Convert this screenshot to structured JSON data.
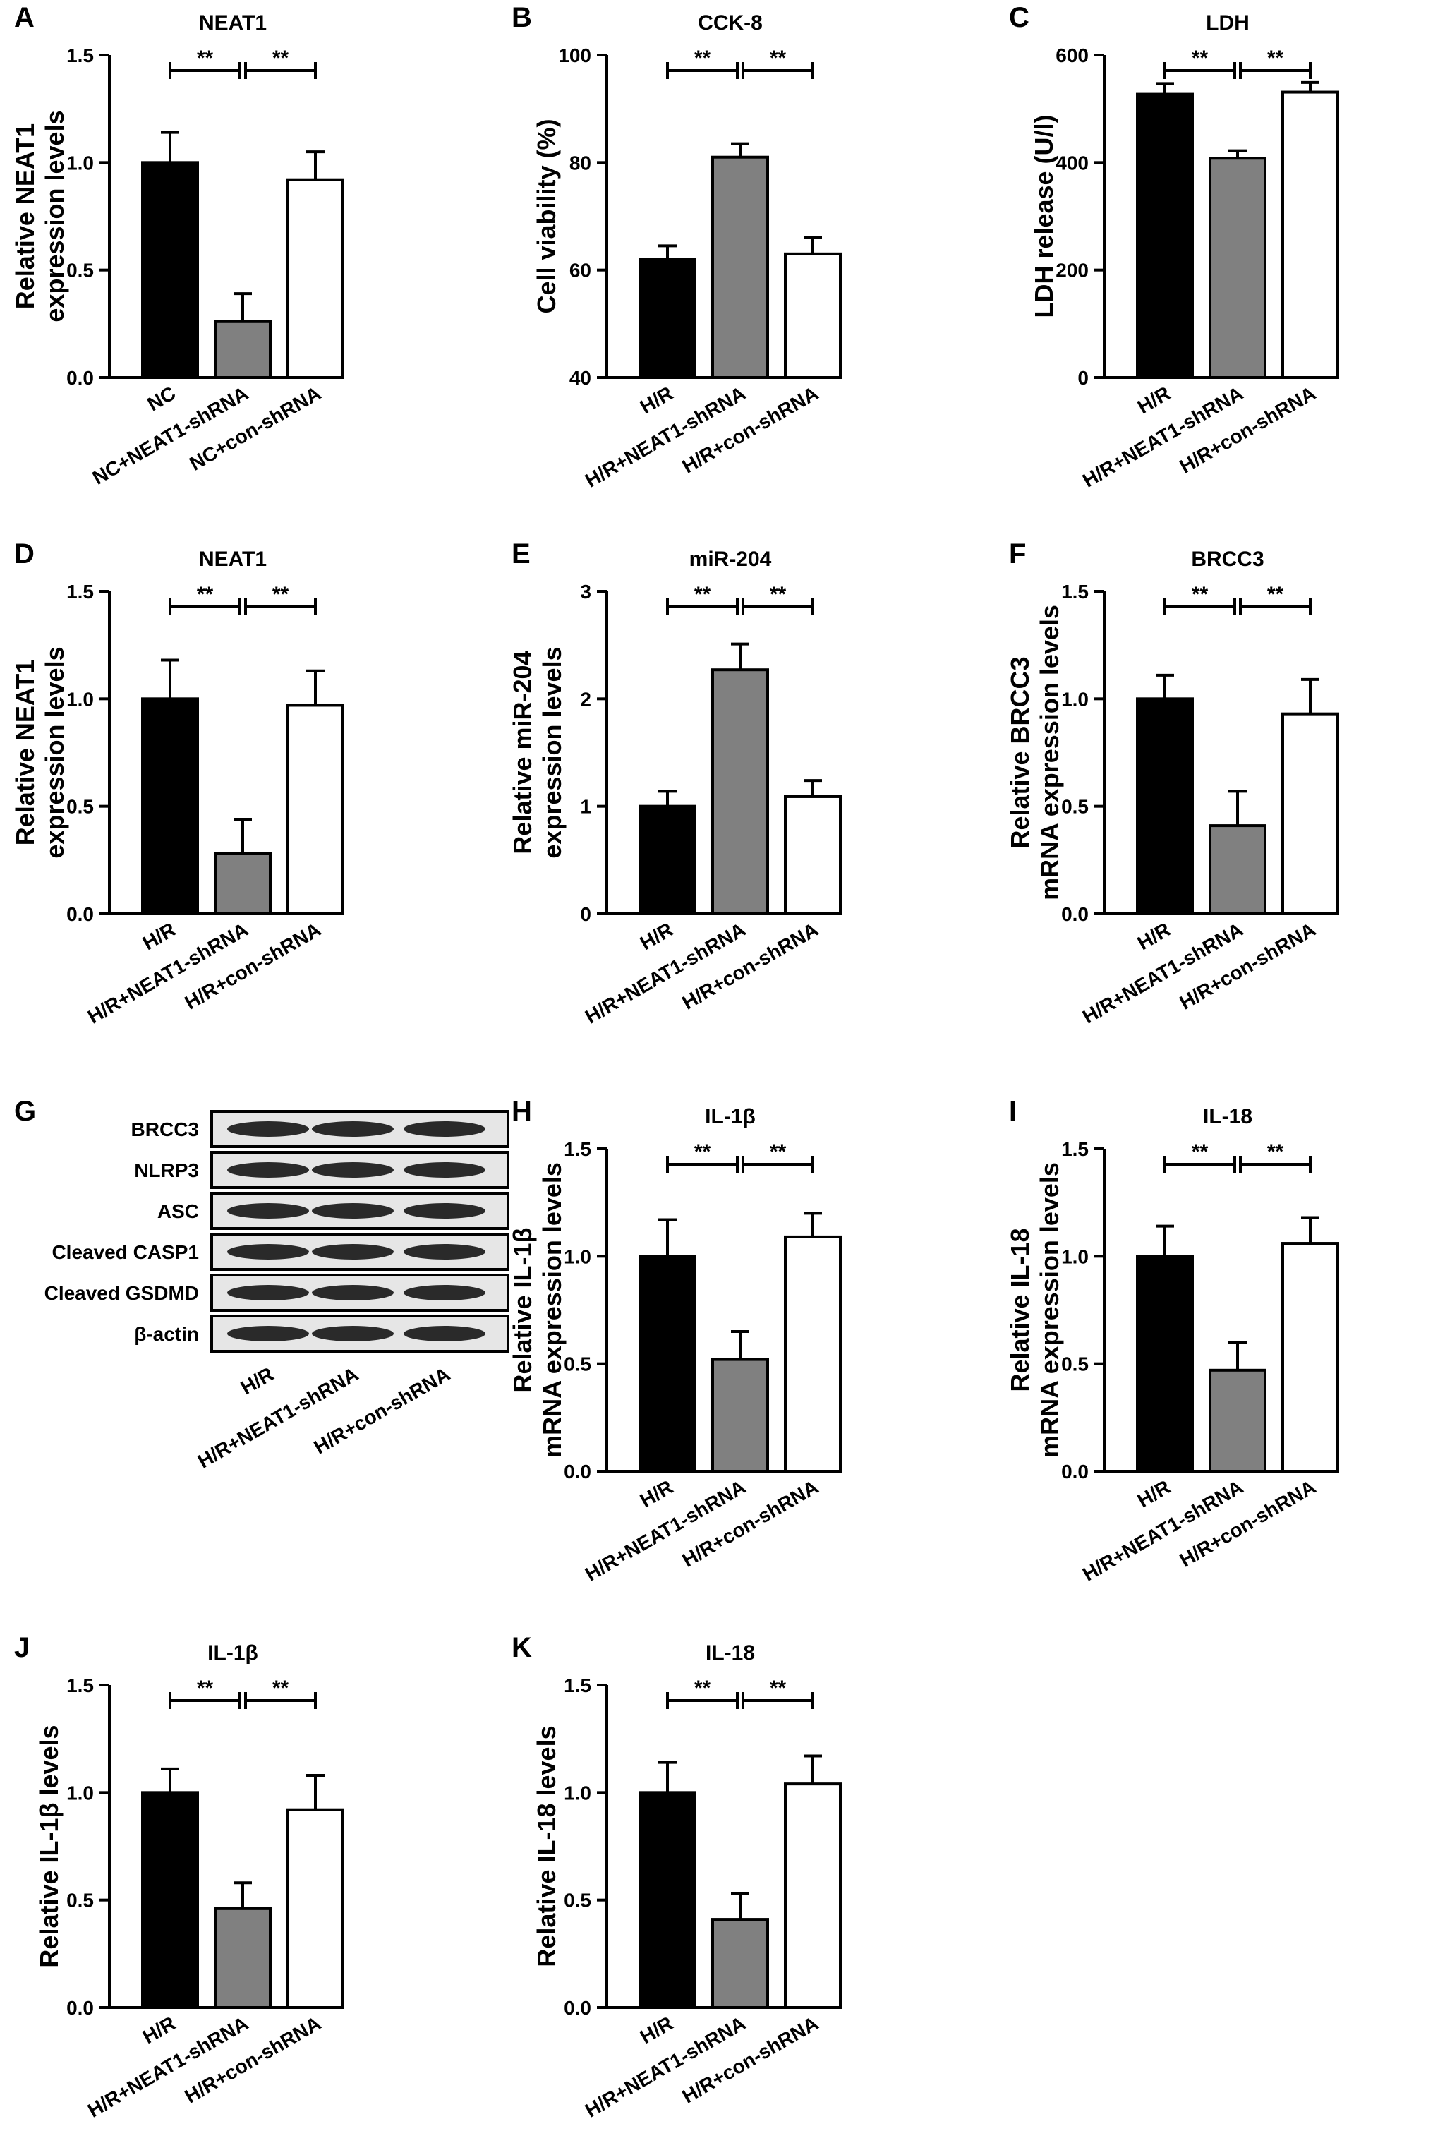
{
  "chart_data": [
    {
      "id": "A",
      "letter": "A",
      "type": "bar",
      "title": "NEAT1",
      "ylabel": "Relative NEAT1\nexpression levels",
      "categories": [
        "NC",
        "NC+NEAT1-shRNA",
        "NC+con-shRNA"
      ],
      "values": [
        1.0,
        0.26,
        0.92
      ],
      "errors": [
        0.14,
        0.13,
        0.13
      ],
      "ylim": [
        0,
        1.5
      ],
      "yticks": [
        "0.0",
        "0.5",
        "1.0",
        "1.5"
      ],
      "significance": [
        "**",
        "**"
      ]
    },
    {
      "id": "B",
      "letter": "B",
      "type": "bar",
      "title": "CCK-8",
      "ylabel": "Cell viability (%)",
      "categories": [
        "H/R",
        "H/R+NEAT1-shRNA",
        "H/R+con-shRNA"
      ],
      "values": [
        62,
        81,
        63
      ],
      "errors": [
        2.5,
        2.5,
        3.0
      ],
      "ylim": [
        40,
        100
      ],
      "yticks": [
        "40",
        "60",
        "80",
        "100"
      ],
      "significance": [
        "**",
        "**"
      ]
    },
    {
      "id": "C",
      "letter": "C",
      "type": "bar",
      "title": "LDH",
      "ylabel": "LDH release (U/l)",
      "categories": [
        "H/R",
        "H/R+NEAT1-shRNA",
        "H/R+con-shRNA"
      ],
      "values": [
        527,
        408,
        531
      ],
      "errors": [
        20,
        14,
        18
      ],
      "ylim": [
        0,
        600
      ],
      "yticks": [
        "0",
        "200",
        "400",
        "600"
      ],
      "significance": [
        "**",
        "**"
      ]
    },
    {
      "id": "D",
      "letter": "D",
      "type": "bar",
      "title": "NEAT1",
      "ylabel": "Relative NEAT1\nexpression levels",
      "categories": [
        "H/R",
        "H/R+NEAT1-shRNA",
        "H/R+con-shRNA"
      ],
      "values": [
        1.0,
        0.28,
        0.97
      ],
      "errors": [
        0.18,
        0.16,
        0.16
      ],
      "ylim": [
        0,
        1.5
      ],
      "yticks": [
        "0.0",
        "0.5",
        "1.0",
        "1.5"
      ],
      "significance": [
        "**",
        "**"
      ]
    },
    {
      "id": "E",
      "letter": "E",
      "type": "bar",
      "title": "miR-204",
      "ylabel": "Relative miR-204\nexpression levels",
      "categories": [
        "H/R",
        "H/R+NEAT1-shRNA",
        "H/R+con-shRNA"
      ],
      "values": [
        1.0,
        2.27,
        1.09
      ],
      "errors": [
        0.14,
        0.24,
        0.15
      ],
      "ylim": [
        0,
        3
      ],
      "yticks": [
        "0",
        "1",
        "2",
        "3"
      ],
      "significance": [
        "**",
        "**"
      ]
    },
    {
      "id": "F",
      "letter": "F",
      "type": "bar",
      "title": "BRCC3",
      "ylabel": "Relative BRCC3\nmRNA expression levels",
      "categories": [
        "H/R",
        "H/R+NEAT1-shRNA",
        "H/R+con-shRNA"
      ],
      "values": [
        1.0,
        0.41,
        0.93
      ],
      "errors": [
        0.11,
        0.16,
        0.16
      ],
      "ylim": [
        0,
        1.5
      ],
      "yticks": [
        "0.0",
        "0.5",
        "1.0",
        "1.5"
      ],
      "significance": [
        "**",
        "**"
      ]
    },
    {
      "id": "H",
      "letter": "H",
      "type": "bar",
      "title": "IL-1β",
      "ylabel": "Relative IL-1β\nmRNA expression levels",
      "categories": [
        "H/R",
        "H/R+NEAT1-shRNA",
        "H/R+con-shRNA"
      ],
      "values": [
        1.0,
        0.52,
        1.09
      ],
      "errors": [
        0.17,
        0.13,
        0.11
      ],
      "ylim": [
        0,
        1.5
      ],
      "yticks": [
        "0.0",
        "0.5",
        "1.0",
        "1.5"
      ],
      "significance": [
        "**",
        "**"
      ]
    },
    {
      "id": "I",
      "letter": "I",
      "type": "bar",
      "title": "IL-18",
      "ylabel": "Relative IL-18\nmRNA expression levels",
      "categories": [
        "H/R",
        "H/R+NEAT1-shRNA",
        "H/R+con-shRNA"
      ],
      "values": [
        1.0,
        0.47,
        1.06
      ],
      "errors": [
        0.14,
        0.13,
        0.12
      ],
      "ylim": [
        0,
        1.5
      ],
      "yticks": [
        "0.0",
        "0.5",
        "1.0",
        "1.5"
      ],
      "significance": [
        "**",
        "**"
      ]
    },
    {
      "id": "J",
      "letter": "J",
      "type": "bar",
      "title": "IL-1β",
      "ylabel": "Relative IL-1β levels",
      "categories": [
        "H/R",
        "H/R+NEAT1-shRNA",
        "H/R+con-shRNA"
      ],
      "values": [
        1.0,
        0.46,
        0.92
      ],
      "errors": [
        0.11,
        0.12,
        0.16
      ],
      "ylim": [
        0,
        1.5
      ],
      "yticks": [
        "0.0",
        "0.5",
        "1.0",
        "1.5"
      ],
      "significance": [
        "**",
        "**"
      ]
    },
    {
      "id": "K",
      "letter": "K",
      "type": "bar",
      "title": "IL-18",
      "ylabel": "Relative IL-18 levels",
      "categories": [
        "H/R",
        "H/R+NEAT1-shRNA",
        "H/R+con-shRNA"
      ],
      "values": [
        1.0,
        0.41,
        1.04
      ],
      "errors": [
        0.14,
        0.12,
        0.13
      ],
      "ylim": [
        0,
        1.5
      ],
      "yticks": [
        "0.0",
        "0.5",
        "1.0",
        "1.5"
      ],
      "significance": [
        "**",
        "**"
      ]
    }
  ],
  "western_blot": {
    "letter": "G",
    "bands": [
      "BRCC3",
      "NLRP3",
      "ASC",
      "Cleaved CASP1",
      "Cleaved GSDMD",
      "β-actin"
    ],
    "lanes": [
      "H/R",
      "H/R+NEAT1-shRNA",
      "H/R+con-shRNA"
    ]
  },
  "colors": {
    "bar_fills": [
      "#000000",
      "#808080",
      "#ffffff"
    ],
    "stroke": "#000000",
    "blot_background": "#e6e6e6",
    "band_color": "#2a2a2a"
  }
}
